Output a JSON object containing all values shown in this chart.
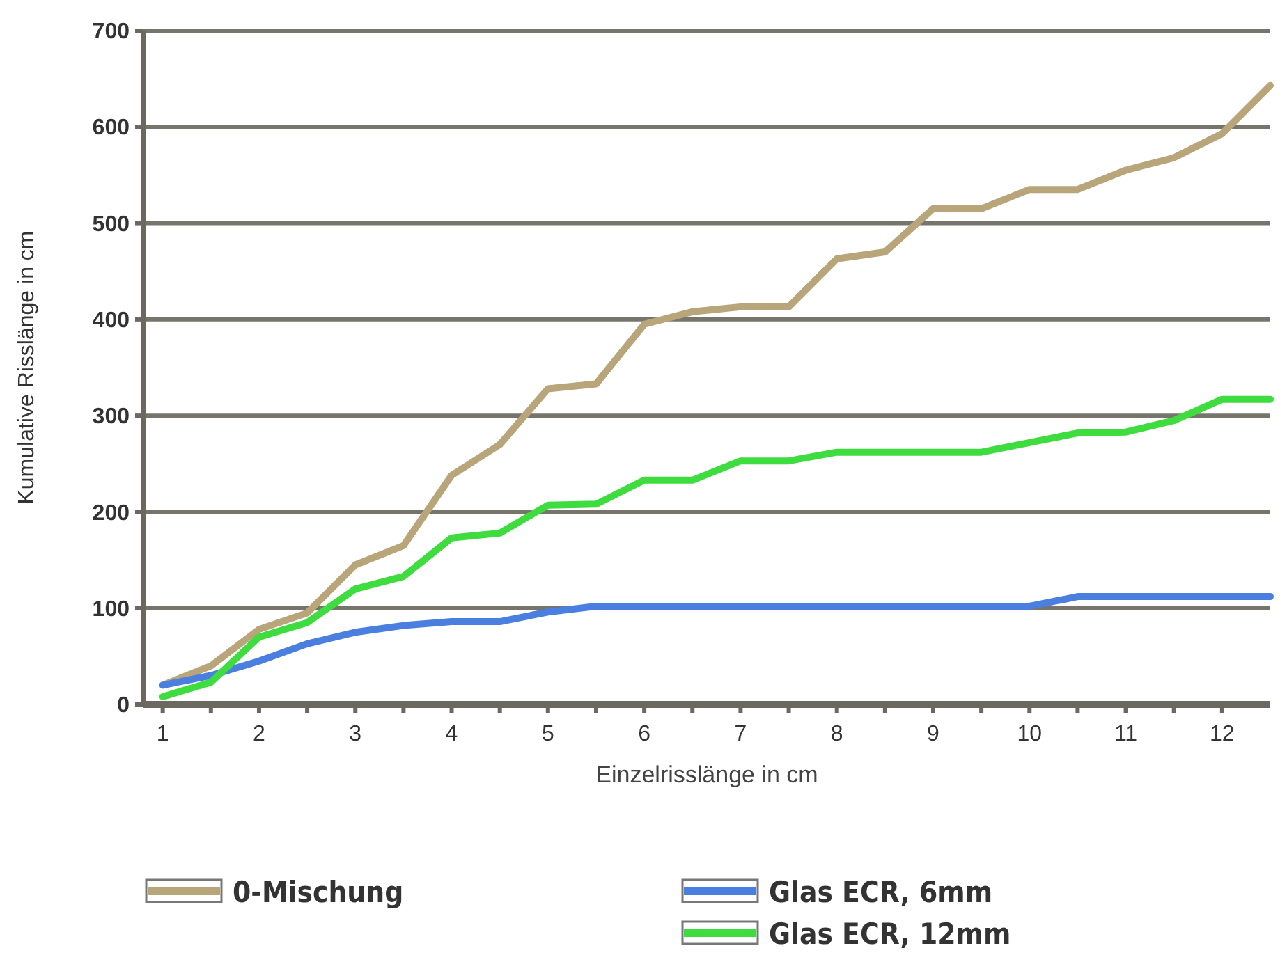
{
  "chart_data": {
    "type": "line",
    "xlabel": "Einzelrisslänge in cm",
    "ylabel": "Kumulative Risslänge in cm",
    "x": [
      1,
      1.5,
      2,
      2.5,
      3,
      3.5,
      4,
      4.5,
      5,
      5.5,
      6,
      6.5,
      7,
      7.5,
      8,
      8.5,
      9,
      9.5,
      10,
      10.5,
      11,
      11.5,
      12,
      12.5
    ],
    "series": [
      {
        "name": "0-Mischung",
        "color": "#b8a57a",
        "values": [
          20,
          40,
          78,
          95,
          145,
          165,
          238,
          270,
          328,
          333,
          395,
          408,
          413,
          413,
          463,
          470,
          515,
          515,
          535,
          535,
          555,
          568,
          593,
          643
        ]
      },
      {
        "name": "Glas ECR, 6mm",
        "color": "#4a7fe0",
        "values": [
          20,
          30,
          45,
          63,
          75,
          82,
          86,
          86,
          96,
          102,
          102,
          102,
          102,
          102,
          102,
          102,
          102,
          102,
          102,
          112,
          112,
          112,
          112,
          112
        ]
      },
      {
        "name": "Glas ECR, 12mm",
        "color": "#3fdc3f",
        "values": [
          8,
          23,
          70,
          85,
          120,
          133,
          173,
          178,
          207,
          208,
          233,
          233,
          253,
          253,
          262,
          262,
          262,
          262,
          272,
          282,
          283,
          295,
          317,
          317
        ]
      }
    ],
    "xlim": [
      0.8,
      12.5
    ],
    "xticks": [
      1,
      {
        "value": 1.5,
        "label": null
      },
      2,
      {
        "value": 2.5,
        "label": null
      },
      3,
      {
        "value": 3.5,
        "label": null
      },
      4,
      {
        "value": 4.5,
        "label": null
      },
      5,
      {
        "value": 5.5,
        "label": null
      },
      6,
      {
        "value": 6.5,
        "label": null
      },
      7,
      {
        "value": 7.5,
        "label": null
      },
      8,
      {
        "value": 8.5,
        "label": null
      },
      9,
      {
        "value": 9.5,
        "label": null
      },
      10,
      {
        "value": 10.5,
        "label": null
      },
      11,
      {
        "value": 11.5,
        "label": null
      },
      12
    ],
    "ylim": [
      0,
      700
    ],
    "yticks": [
      0,
      100,
      200,
      300,
      400,
      500,
      600,
      700
    ],
    "grid": "y",
    "legend": "bottom",
    "marker": "none",
    "line_style": "solid"
  }
}
